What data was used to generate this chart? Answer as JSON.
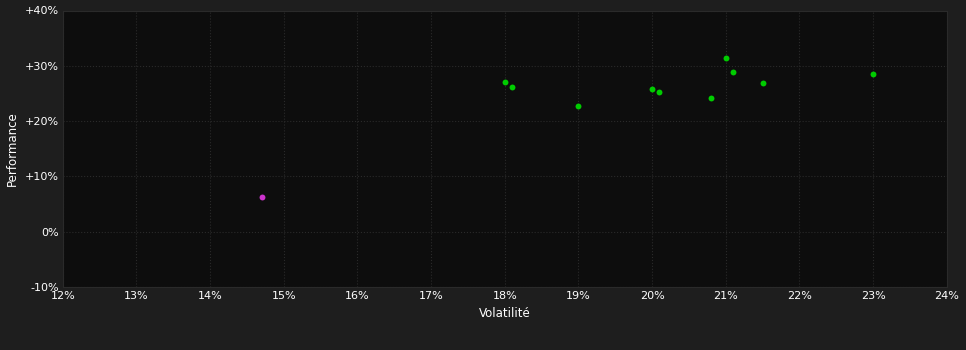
{
  "background_color": "#1e1e1e",
  "plot_bg_color": "#0d0d0d",
  "grid_color": "#2a2a2a",
  "text_color": "#ffffff",
  "xlabel": "Volatilité",
  "ylabel": "Performance",
  "xlim": [
    0.12,
    0.24
  ],
  "ylim": [
    -0.1,
    0.4
  ],
  "xticks": [
    0.12,
    0.13,
    0.14,
    0.15,
    0.16,
    0.17,
    0.18,
    0.19,
    0.2,
    0.21,
    0.22,
    0.23,
    0.24
  ],
  "yticks": [
    -0.1,
    0.0,
    0.1,
    0.2,
    0.3,
    0.4
  ],
  "ytick_labels": [
    "-10%",
    "0%",
    "+10%",
    "+20%",
    "+30%",
    "+40%"
  ],
  "xtick_labels": [
    "12%",
    "13%",
    "14%",
    "15%",
    "16%",
    "17%",
    "18%",
    "19%",
    "20%",
    "21%",
    "22%",
    "23%",
    "24%"
  ],
  "green_dots": [
    [
      0.18,
      0.27
    ],
    [
      0.181,
      0.262
    ],
    [
      0.19,
      0.227
    ],
    [
      0.2,
      0.258
    ],
    [
      0.201,
      0.252
    ],
    [
      0.208,
      0.242
    ],
    [
      0.21,
      0.315
    ],
    [
      0.211,
      0.288
    ],
    [
      0.215,
      0.268
    ],
    [
      0.23,
      0.285
    ]
  ],
  "magenta_dots": [
    [
      0.147,
      0.063
    ]
  ],
  "dot_size": 18,
  "green_color": "#00cc00",
  "magenta_color": "#cc33cc"
}
